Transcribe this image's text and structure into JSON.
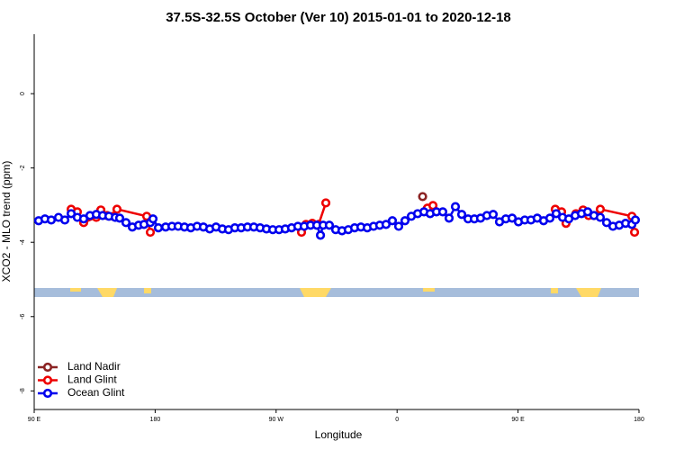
{
  "chart_data": {
    "type": "line",
    "title": "37.5S-32.5S October (Ver 10)   2015-01-01 to 2020-12-18",
    "x_label": "Longitude",
    "y_label": "XCO2 - MLO trend (ppm)",
    "xlim": [
      90,
      540
    ],
    "ylim": [
      -8.5,
      1.6
    ],
    "xticks": [
      {
        "value": 90,
        "label": "90 E"
      },
      {
        "value": 180,
        "label": "180"
      },
      {
        "value": 270,
        "label": "90 W"
      },
      {
        "value": 360,
        "label": "0"
      },
      {
        "value": 450,
        "label": "90 E"
      },
      {
        "value": 540,
        "label": "180"
      }
    ],
    "yticks": [
      0,
      -2,
      -4,
      -6,
      -8
    ],
    "legend": "lower left",
    "series": [
      {
        "name": "Land Nadir",
        "color": "#8b2323",
        "x": [
          379
        ],
        "values": [
          -2.77
        ]
      },
      {
        "name": "Land Glint",
        "color": "#ee0000",
        "x": [
          117.5,
          122.1,
          126.8,
          136.2,
          139.6,
          144.2,
          148.9,
          151.6,
          173.7,
          176.4,
          null,
          288.9,
          292.2,
          296.9,
          301.6,
          307.0,
          null,
          382.6,
          386.7,
          null,
          477.7,
          482.4,
          485.7,
          493.1,
          498.4,
          502.5,
          506.5,
          511.2,
          534.7,
          536.7
        ],
        "values": [
          -3.11,
          -3.18,
          -3.47,
          -3.33,
          -3.13,
          -3.28,
          -3.3,
          -3.11,
          -3.3,
          -3.73,
          null,
          -3.73,
          -3.52,
          -3.49,
          -3.52,
          -2.94,
          null,
          -3.08,
          -3.01,
          null,
          -3.11,
          -3.18,
          -3.49,
          -3.23,
          -3.13,
          -3.28,
          -3.28,
          -3.11,
          -3.3,
          -3.73
        ]
      },
      {
        "name": "Ocean Glint",
        "color": "#0000ee",
        "x": [
          93.3,
          98.0,
          102.7,
          108.1,
          112.8,
          117.5,
          122.1,
          126.8,
          131.5,
          136.2,
          140.9,
          145.6,
          150.3,
          153.6,
          158.3,
          163.0,
          167.7,
          171.7,
          176.4,
          178.4,
          182.4,
          187.8,
          192.5,
          197.1,
          201.8,
          206.5,
          211.2,
          215.9,
          220.6,
          225.3,
          230.0,
          234.6,
          239.3,
          244.0,
          248.7,
          253.4,
          258.1,
          262.8,
          267.5,
          272.2,
          276.8,
          281.5,
          286.2,
          290.9,
          295.6,
          300.3,
          303.0,
          305.0,
          309.6,
          314.3,
          319.0,
          323.7,
          328.4,
          333.1,
          337.8,
          342.5,
          347.1,
          351.8,
          356.5,
          361.2,
          365.9,
          370.6,
          375.3,
          380.0,
          384.6,
          389.3,
          394.0,
          398.7,
          403.4,
          408.1,
          412.8,
          417.5,
          422.1,
          426.8,
          431.5,
          436.2,
          440.9,
          445.6,
          450.3,
          455.0,
          459.6,
          464.3,
          469.0,
          473.7,
          478.4,
          483.1,
          487.8,
          492.5,
          497.2,
          501.8,
          506.5,
          511.2,
          515.9,
          520.6,
          525.3,
          530.0,
          534.7,
          537.3
        ],
        "values": [
          -3.42,
          -3.37,
          -3.4,
          -3.33,
          -3.4,
          -3.23,
          -3.33,
          -3.37,
          -3.28,
          -3.25,
          -3.28,
          -3.3,
          -3.33,
          -3.35,
          -3.47,
          -3.59,
          -3.54,
          -3.52,
          -3.47,
          -3.37,
          -3.61,
          -3.59,
          -3.57,
          -3.57,
          -3.59,
          -3.61,
          -3.57,
          -3.59,
          -3.64,
          -3.59,
          -3.64,
          -3.66,
          -3.61,
          -3.61,
          -3.59,
          -3.59,
          -3.61,
          -3.64,
          -3.66,
          -3.66,
          -3.64,
          -3.61,
          -3.57,
          -3.57,
          -3.54,
          -3.54,
          -3.81,
          -3.54,
          -3.54,
          -3.66,
          -3.69,
          -3.66,
          -3.61,
          -3.59,
          -3.61,
          -3.57,
          -3.54,
          -3.52,
          -3.42,
          -3.57,
          -3.42,
          -3.3,
          -3.23,
          -3.18,
          -3.23,
          -3.18,
          -3.18,
          -3.35,
          -3.04,
          -3.25,
          -3.37,
          -3.37,
          -3.35,
          -3.28,
          -3.25,
          -3.45,
          -3.37,
          -3.35,
          -3.45,
          -3.4,
          -3.4,
          -3.35,
          -3.42,
          -3.35,
          -3.23,
          -3.33,
          -3.37,
          -3.28,
          -3.23,
          -3.18,
          -3.28,
          -3.33,
          -3.47,
          -3.57,
          -3.54,
          -3.49,
          -3.52,
          -3.4
        ]
      }
    ]
  }
}
